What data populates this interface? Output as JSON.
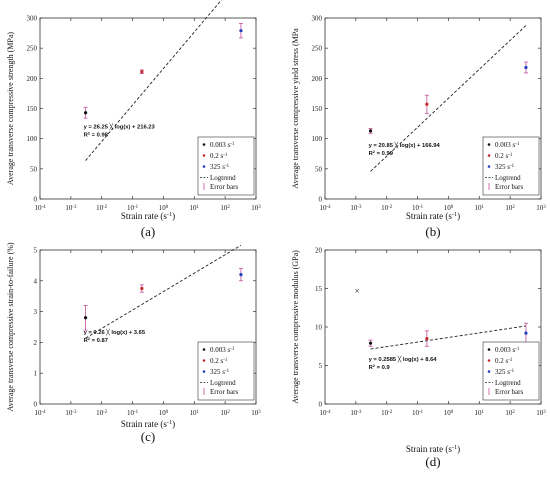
{
  "colors": {
    "s1": "#111111",
    "s2": "#c62828",
    "s3": "#1e3fbf",
    "err": "#c64f9a",
    "trend": "#222222",
    "axis": "#333333"
  },
  "chart_data": [
    {
      "type": "scatter",
      "caption": "(a)",
      "xscale": "log",
      "xlim": [
        0.0001,
        1000
      ],
      "ylim": [
        0,
        300
      ],
      "xticks": [
        "10-4",
        "10-3",
        "10-2",
        "10-1",
        "100",
        "101",
        "102",
        "103"
      ],
      "yticks": [
        "0",
        "50",
        "100",
        "150",
        "200",
        "250",
        "300"
      ],
      "xlabel": "Strain rate (s-1)",
      "ylabel": "Average transverse compressive strength (MPa)",
      "series": [
        {
          "name": "0.003 s-1",
          "x": 0.003,
          "y": 143,
          "err": 9
        },
        {
          "name": "0.2 s-1",
          "x": 0.2,
          "y": 211,
          "err": 3
        },
        {
          "name": "325 s-1",
          "x": 325,
          "y": 279,
          "err": 12
        }
      ],
      "trend": {
        "name": "Logtrend",
        "slope": 26.25,
        "intercept": 216.23,
        "x_range": [
          0.003,
          325
        ]
      },
      "equation": "y = 26.25  ╳  log(x) + 216.23",
      "r2": "R2 = 0.98",
      "legend_error": "Error bars",
      "legend_placement": "bottom-right"
    },
    {
      "type": "scatter",
      "caption": "(b)",
      "xscale": "log",
      "xlim": [
        0.0001,
        1000
      ],
      "ylim": [
        0,
        300
      ],
      "xticks": [
        "10-4",
        "10-3",
        "10-2",
        "10-1",
        "100",
        "101",
        "102",
        "103"
      ],
      "yticks": [
        "0",
        "50",
        "100",
        "150",
        "200",
        "250",
        "300"
      ],
      "xlabel": "Strain rate (s-1)",
      "ylabel": "Average transverse compressive yield stress (MPa",
      "series": [
        {
          "name": "0.003 s-1",
          "x": 0.003,
          "y": 113,
          "err": 4
        },
        {
          "name": "0.2 s-1",
          "x": 0.2,
          "y": 157,
          "err": 15
        },
        {
          "name": "325 s-1",
          "x": 325,
          "y": 218,
          "err": 9
        }
      ],
      "trend": {
        "name": "Logtrend",
        "slope": 20.85,
        "intercept": 166.94,
        "x_range": [
          0.003,
          325
        ]
      },
      "equation": "y = 20.85  ╳  log(x) + 166.94",
      "r2": "R2 = 0.99",
      "legend_error": "Error bars",
      "legend_placement": "bottom-right"
    },
    {
      "type": "scatter",
      "caption": "(c)",
      "xscale": "log",
      "xlim": [
        0.0001,
        1000
      ],
      "ylim": [
        0,
        5
      ],
      "xticks": [
        "10-4",
        "10-3",
        "10-2",
        "10-1",
        "100",
        "101",
        "102",
        "103"
      ],
      "yticks": [
        "0",
        "1",
        "2",
        "3",
        "4",
        "5"
      ],
      "xlabel": "Strain rate (s-1)",
      "ylabel": "Average transverse compressive strain-to-failure (%)",
      "series": [
        {
          "name": "0.003 s-1",
          "x": 0.003,
          "y": 2.8,
          "err": 0.4
        },
        {
          "name": "0.2 s-1",
          "x": 0.2,
          "y": 3.75,
          "err": 0.12
        },
        {
          "name": "325 s-1",
          "x": 325,
          "y": 4.2,
          "err": 0.2
        }
      ],
      "trend": {
        "name": "Logtrend",
        "slope": 0.26,
        "intercept": 3.65,
        "x_range": [
          0.003,
          325
        ]
      },
      "equation": "y = 0.26  ╳  log(x) + 3.65",
      "r2": "R2 = 0.87",
      "legend_error": "Error bars",
      "legend_placement": "bottom-right"
    },
    {
      "type": "scatter",
      "caption": "(d)",
      "xscale": "log",
      "xlim": [
        0.0001,
        1000
      ],
      "ylim": [
        0,
        20
      ],
      "xticks": [
        "10-4",
        "10-3",
        "10-2",
        "10-1",
        "100",
        "101",
        "102",
        "103"
      ],
      "yticks": [
        "0",
        "5",
        "10",
        "15",
        "20"
      ],
      "xlabel": "Strain rate (s-1)",
      "ylabel": "Average transverse compressive modulus (GPa)",
      "series": [
        {
          "name": "0.003 s-1",
          "x": 0.003,
          "y": 7.9,
          "err": 0.4
        },
        {
          "name": "0.2 s-1",
          "x": 0.2,
          "y": 8.5,
          "err": 1.0
        },
        {
          "name": "325 s-1",
          "x": 325,
          "y": 9.2,
          "err": 1.3
        }
      ],
      "outlier": {
        "x": 0.0011,
        "y": 14.7,
        "label": "×"
      },
      "trend": {
        "name": "Logtrend",
        "slope": 0.2585,
        "intercept": 8.64,
        "x_range": [
          0.003,
          325
        ]
      },
      "equation": "y = 0.2585  ╳  log(x) + 8.64",
      "r2": "R2 = 0.9",
      "legend_error": "Error bars",
      "legend_placement": "bottom-right"
    }
  ]
}
